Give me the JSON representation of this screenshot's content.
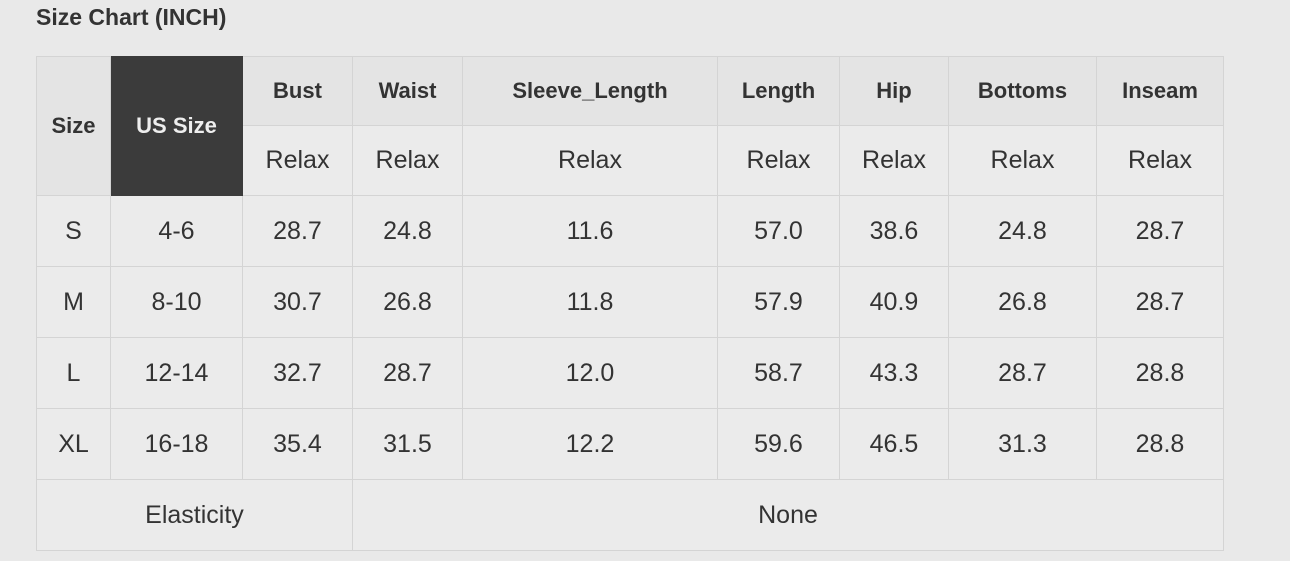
{
  "title": "Size Chart (INCH)",
  "header": {
    "size": "Size",
    "us_size": "US Size",
    "measures": [
      "Bust",
      "Waist",
      "Sleeve_Length",
      "Length",
      "Hip",
      "Bottoms",
      "Inseam"
    ],
    "sub": [
      "Relax",
      "Relax",
      "Relax",
      "Relax",
      "Relax",
      "Relax",
      "Relax"
    ]
  },
  "rows": [
    [
      "S",
      "4-6",
      "28.7",
      "24.8",
      "11.6",
      "57.0",
      "38.6",
      "24.8",
      "28.7"
    ],
    [
      "M",
      "8-10",
      "30.7",
      "26.8",
      "11.8",
      "57.9",
      "40.9",
      "26.8",
      "28.7"
    ],
    [
      "L",
      "12-14",
      "32.7",
      "28.7",
      "12.0",
      "58.7",
      "43.3",
      "28.7",
      "28.8"
    ],
    [
      "XL",
      "16-18",
      "35.4",
      "31.5",
      "12.2",
      "59.6",
      "46.5",
      "31.3",
      "28.8"
    ]
  ],
  "elasticity": {
    "label": "Elasticity",
    "value": "None"
  },
  "colors": {
    "highlight_header": "#3b3b3b",
    "background": "#e9e9e9"
  }
}
